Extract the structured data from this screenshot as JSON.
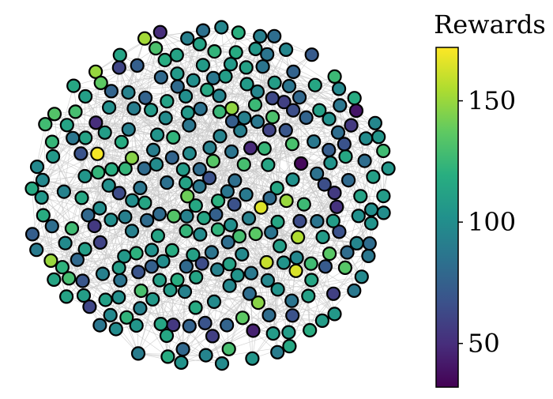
{
  "chart_data": {
    "type": "scatter",
    "subtype": "network-graph",
    "title": "",
    "xlabel": "",
    "ylabel": "",
    "colorbar": {
      "label": "Rewards",
      "ticks": [
        50,
        100,
        150
      ],
      "range": [
        32,
        172
      ],
      "colormap": "viridis",
      "orientation": "vertical",
      "placement": "right"
    },
    "node_style": {
      "outline_color": "#000000",
      "edge_color": "#c8c8c8"
    },
    "layout_seed": 7,
    "nodes": {
      "count": 300,
      "reward_distribution": {
        "mean": 100,
        "spread": 22,
        "min": 35,
        "max": 170
      },
      "highlighted_rewards": [
        170,
        165,
        160,
        155,
        152,
        150,
        148,
        146,
        40,
        45,
        48,
        50,
        52,
        55,
        58,
        60
      ]
    },
    "edges": {
      "count": 1400,
      "style": "thin light gray lines"
    }
  }
}
